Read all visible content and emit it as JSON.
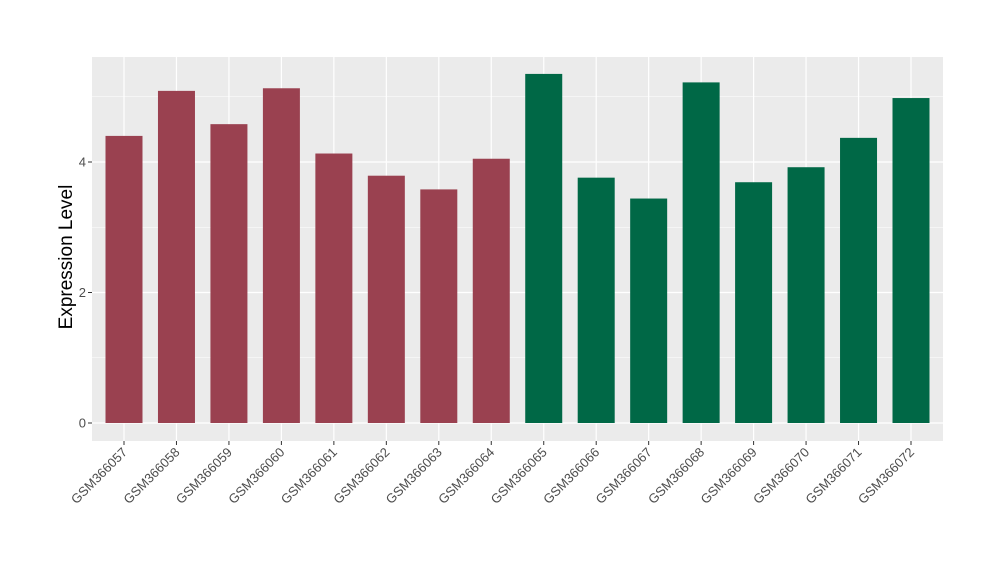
{
  "chart_data": {
    "type": "bar",
    "title": "",
    "xlabel": "",
    "ylabel": "Expression Level",
    "categories": [
      "GSM366057",
      "GSM366058",
      "GSM366059",
      "GSM366060",
      "GSM366061",
      "GSM366062",
      "GSM366063",
      "GSM366064",
      "GSM366065",
      "GSM366066",
      "GSM366067",
      "GSM366068",
      "GSM366069",
      "GSM366070",
      "GSM366071",
      "GSM366072"
    ],
    "values": [
      4.4,
      5.09,
      4.58,
      5.13,
      4.13,
      3.79,
      3.58,
      4.05,
      5.35,
      3.76,
      3.44,
      5.22,
      3.69,
      3.92,
      4.37,
      4.98
    ],
    "groups": [
      1,
      1,
      1,
      1,
      1,
      1,
      1,
      1,
      2,
      2,
      2,
      2,
      2,
      2,
      2,
      2
    ],
    "group_colors": {
      "1": "#9a4150",
      "2": "#006846"
    },
    "ylim": [
      -0.28,
      5.6
    ],
    "yticks": [
      0,
      2,
      4
    ],
    "ytick_labels": [
      "0",
      "2",
      "4"
    ],
    "grid": true,
    "panel_color": "#ebebeb",
    "grid_color": "#ffffff"
  }
}
